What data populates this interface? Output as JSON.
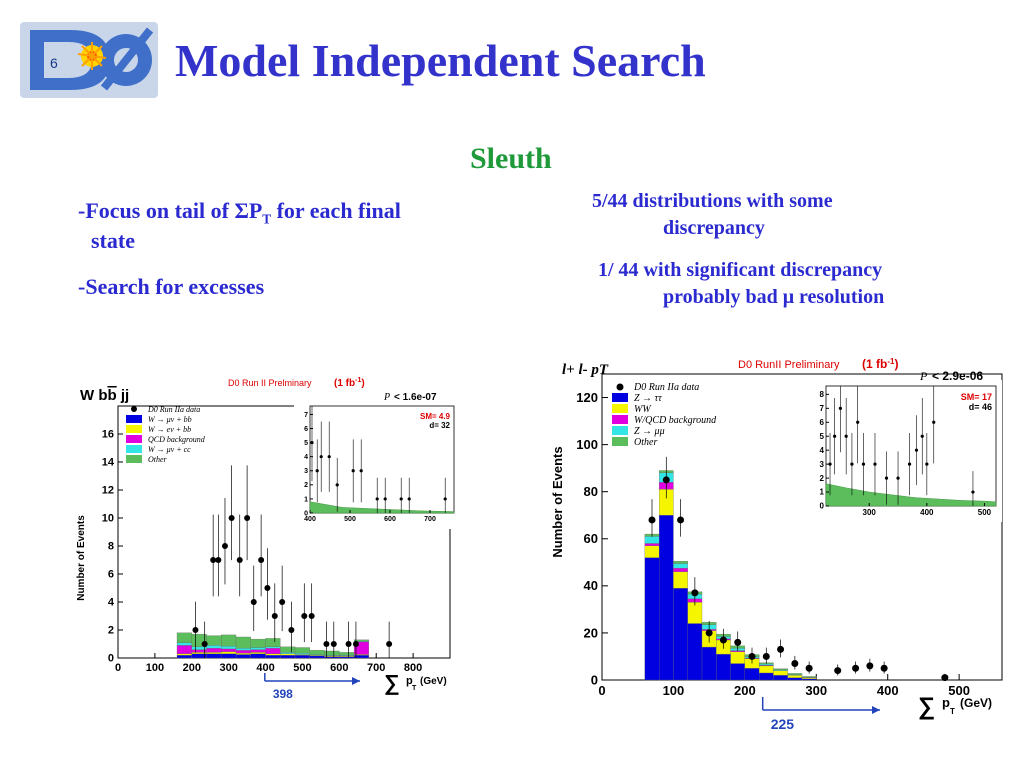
{
  "logo": {
    "text": "DØ"
  },
  "title": "Model Independent Search",
  "subtitle": "Sleuth",
  "bullets_left": [
    {
      "prefix": "-",
      "text_a": "Focus on tail of ",
      "sym": "Σ",
      "text_b": "P",
      "sub": "T",
      "text_c": " for each final",
      "line2": "state"
    },
    {
      "prefix": "-",
      "text": "Search for excesses"
    }
  ],
  "bullets_right": [
    {
      "line1": "5/44  distributions  with some",
      "line2": "discrepancy"
    },
    {
      "line1": "1/ 44 with significant discrepancy",
      "line2a": "probably bad ",
      "mu": "μ",
      "line2b": " resolution"
    }
  ],
  "chart_data": [
    {
      "type": "bar",
      "subtype": "stacked-histogram-with-data-points",
      "title": "D0 Run II Prel",
      "title_suffix": "minary",
      "title_lumi": "(1 fb",
      "title_lumi_exp": "-1",
      "title_lumi_close": ")",
      "channel_a": "W b",
      "channel_b": "b",
      "channel_c": " jj",
      "pvalue": "< 1.6e-07",
      "ylabel": "Number of Events",
      "xlabel_sym": "∑",
      "xlabel_p": "p",
      "xlabel_t": "T",
      "xlabel_unit": "(GeV)",
      "xlim": [
        0,
        900
      ],
      "ylim": [
        0,
        18
      ],
      "xticks": [
        "0",
        "100",
        "200",
        "300",
        "400",
        "500",
        "600",
        "700",
        "800"
      ],
      "yticks": [
        "0",
        "2",
        "4",
        "6",
        "8",
        "10",
        "12",
        "14",
        "16"
      ],
      "legend": [
        "D0 Run IIa data",
        "W → μν + bb",
        "W → eν + bb",
        "QCD background",
        "W → μν + cc",
        "Other"
      ],
      "colors": {
        "blue": "#0000e0",
        "yellow": "#f5f500",
        "magenta": "#e000e0",
        "cyan": "#33e6e6",
        "green": "#5bbd5b"
      },
      "threshold_label": "398",
      "threshold": 398,
      "bin_edges": [
        160,
        200,
        240,
        280,
        320,
        360,
        400,
        440,
        480,
        520,
        560,
        600,
        640,
        680
      ],
      "stacks": {
        "blue": [
          0.2,
          0.3,
          0.3,
          0.3,
          0.25,
          0.3,
          0.2,
          0.2,
          0.2,
          0.15,
          0.1,
          0.1,
          0.2
        ],
        "yellow": [
          0.1,
          0.1,
          0.1,
          0.15,
          0.1,
          0.1,
          0.1,
          0.1,
          0.05,
          0.05,
          0.05,
          0.05,
          0.05
        ],
        "magenta": [
          0.6,
          0.2,
          0.3,
          0.2,
          0.2,
          0.2,
          0.4,
          0.0,
          0.0,
          0.0,
          0.0,
          0.0,
          0.9
        ],
        "cyan": [
          0.2,
          0.2,
          0.2,
          0.2,
          0.15,
          0.15,
          0.1,
          0.1,
          0.1,
          0.05,
          0.05,
          0.05,
          0.05
        ],
        "green": [
          0.7,
          0.9,
          0.7,
          0.8,
          0.8,
          0.6,
          0.6,
          0.4,
          0.4,
          0.3,
          0.3,
          0.2,
          0.1
        ]
      },
      "points": [
        [
          210,
          2
        ],
        [
          235,
          1
        ],
        [
          258,
          7
        ],
        [
          272,
          7
        ],
        [
          290,
          8
        ],
        [
          308,
          10
        ],
        [
          330,
          7
        ],
        [
          350,
          10
        ],
        [
          368,
          4
        ],
        [
          388,
          7
        ],
        [
          405,
          5
        ],
        [
          425,
          3
        ],
        [
          445,
          4
        ],
        [
          470,
          2
        ],
        [
          505,
          3
        ],
        [
          525,
          3
        ],
        [
          565,
          1
        ],
        [
          585,
          1
        ],
        [
          625,
          1
        ],
        [
          645,
          1
        ],
        [
          735,
          1
        ]
      ],
      "inset": {
        "sm_label": "SM= 4.9",
        "d_label": "d= 32",
        "xlim": [
          400,
          760
        ],
        "ylim": [
          0,
          7.6
        ],
        "xticks": [
          "400",
          "500",
          "600",
          "700"
        ],
        "yticks": [
          "0",
          "1",
          "2",
          "3",
          "4",
          "5",
          "6",
          "7"
        ],
        "points": [
          [
            405,
            5
          ],
          [
            418,
            3
          ],
          [
            428,
            4
          ],
          [
            448,
            4
          ],
          [
            468,
            2
          ],
          [
            508,
            3
          ],
          [
            528,
            3
          ],
          [
            568,
            1
          ],
          [
            588,
            1
          ],
          [
            628,
            1
          ],
          [
            648,
            1
          ],
          [
            738,
            1
          ]
        ],
        "green": [
          [
            400,
            0.8
          ],
          [
            440,
            0.6
          ],
          [
            480,
            0.4
          ],
          [
            520,
            0.35
          ],
          [
            560,
            0.3
          ],
          [
            600,
            0.25
          ],
          [
            640,
            0.2
          ],
          [
            680,
            0.15
          ],
          [
            760,
            0.1
          ]
        ]
      }
    },
    {
      "type": "bar",
      "subtype": "stacked-histogram-with-data-points",
      "title": "D0 RunII Preliminary",
      "title_lumi": "(1 fb",
      "title_lumi_exp": "-1",
      "title_lumi_close": ")",
      "channel": "l+ l- pT",
      "pvalue": "< 2.9e-06",
      "ylabel": "Number of Events",
      "xlabel_sym": "∑",
      "xlabel_p": "p",
      "xlabel_t": "T",
      "xlabel_unit": "(GeV)",
      "xlim": [
        0,
        560
      ],
      "ylim": [
        0,
        130
      ],
      "xticks": [
        "0",
        "100",
        "200",
        "300",
        "400",
        "500"
      ],
      "yticks": [
        "0",
        "20",
        "40",
        "60",
        "80",
        "100",
        "120"
      ],
      "legend": [
        "D0 Run IIa data",
        "Z → ττ",
        "WW",
        "W/QCD background",
        "Z → μμ",
        "Other"
      ],
      "colors": {
        "blue": "#0000e0",
        "yellow": "#f5f500",
        "magenta": "#e000e0",
        "cyan": "#33e6e6",
        "green": "#5bbd5b"
      },
      "threshold_label": "225",
      "threshold": 225,
      "bin_edges": [
        60,
        80,
        100,
        120,
        140,
        160,
        180,
        200,
        220,
        240,
        260,
        280,
        300
      ],
      "stacks": {
        "blue": [
          52,
          70,
          39,
          24,
          14,
          11,
          7,
          5,
          3,
          2,
          1,
          0.5
        ],
        "yellow": [
          5,
          11,
          7,
          9,
          7,
          6,
          5,
          4,
          3,
          2,
          1,
          0.5
        ],
        "magenta": [
          1,
          3,
          1.5,
          1.5,
          0.5,
          0.5,
          0.5,
          0.3,
          0.3,
          0,
          0,
          0
        ],
        "cyan": [
          3,
          4,
          2,
          2,
          2,
          1,
          1,
          0.5,
          0.5,
          0.3,
          0.3,
          0.2
        ],
        "green": [
          1,
          1,
          1,
          1,
          1,
          1,
          1,
          1,
          0.5,
          0.5,
          0.5,
          0.3
        ]
      },
      "points": [
        [
          70,
          68
        ],
        [
          90,
          85
        ],
        [
          110,
          68
        ],
        [
          130,
          37
        ],
        [
          150,
          20
        ],
        [
          170,
          17
        ],
        [
          190,
          16
        ],
        [
          210,
          10
        ],
        [
          230,
          10
        ],
        [
          250,
          13
        ],
        [
          270,
          7
        ],
        [
          290,
          5
        ],
        [
          330,
          4
        ],
        [
          355,
          5
        ],
        [
          375,
          6
        ],
        [
          395,
          5
        ],
        [
          480,
          1
        ]
      ],
      "inset": {
        "sm_label": "SM= 17",
        "d_label": "d= 46",
        "xlim": [
          225,
          520
        ],
        "ylim": [
          0,
          8.6
        ],
        "xticks": [
          "300",
          "400",
          "500"
        ],
        "yticks": [
          "0",
          "1",
          "2",
          "3",
          "4",
          "5",
          "6",
          "7",
          "8"
        ],
        "points": [
          [
            232,
            3
          ],
          [
            240,
            5
          ],
          [
            250,
            7
          ],
          [
            260,
            5
          ],
          [
            270,
            3
          ],
          [
            280,
            6
          ],
          [
            290,
            3
          ],
          [
            310,
            3
          ],
          [
            330,
            2
          ],
          [
            350,
            2
          ],
          [
            370,
            3
          ],
          [
            382,
            4
          ],
          [
            392,
            5
          ],
          [
            400,
            3
          ],
          [
            412,
            6
          ],
          [
            480,
            1
          ]
        ],
        "green": [
          [
            225,
            1.6
          ],
          [
            260,
            1.3
          ],
          [
            300,
            1.0
          ],
          [
            340,
            0.8
          ],
          [
            380,
            0.6
          ],
          [
            420,
            0.5
          ],
          [
            460,
            0.4
          ],
          [
            500,
            0.35
          ],
          [
            520,
            0.3
          ]
        ]
      }
    }
  ]
}
